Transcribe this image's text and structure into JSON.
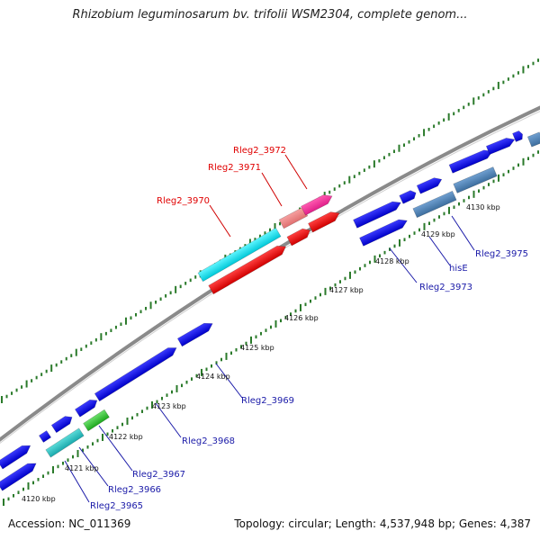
{
  "title": "Rhizobium leguminosarum bv. trifolii WSM2304, complete genom...",
  "accession": "Accession: NC_011369",
  "stats": "Topology: circular; Length: 4,537,948 bp; Genes: 4,387",
  "colors": {
    "backbone": "#8a8a8a",
    "gene_default": "#0a0adc",
    "tick": "#2a7a2a"
  },
  "kbp_labels": [
    "4120 kbp",
    "4121 kbp",
    "4122 kbp",
    "4123 kbp",
    "4124 kbp",
    "4125 kbp",
    "4126 kbp",
    "4127 kbp",
    "4128 kbp",
    "4129 kbp",
    "4130 kbp"
  ],
  "top_labels": [
    "Rleg2_3972",
    "Rleg2_3971",
    "Rleg2_3970"
  ],
  "bottom_labels": [
    "Rleg2_3975",
    "hisE",
    "Rleg2_3973",
    "Rleg2_3969",
    "Rleg2_3968",
    "Rleg2_3967",
    "Rleg2_3966",
    "Rleg2_3965"
  ]
}
